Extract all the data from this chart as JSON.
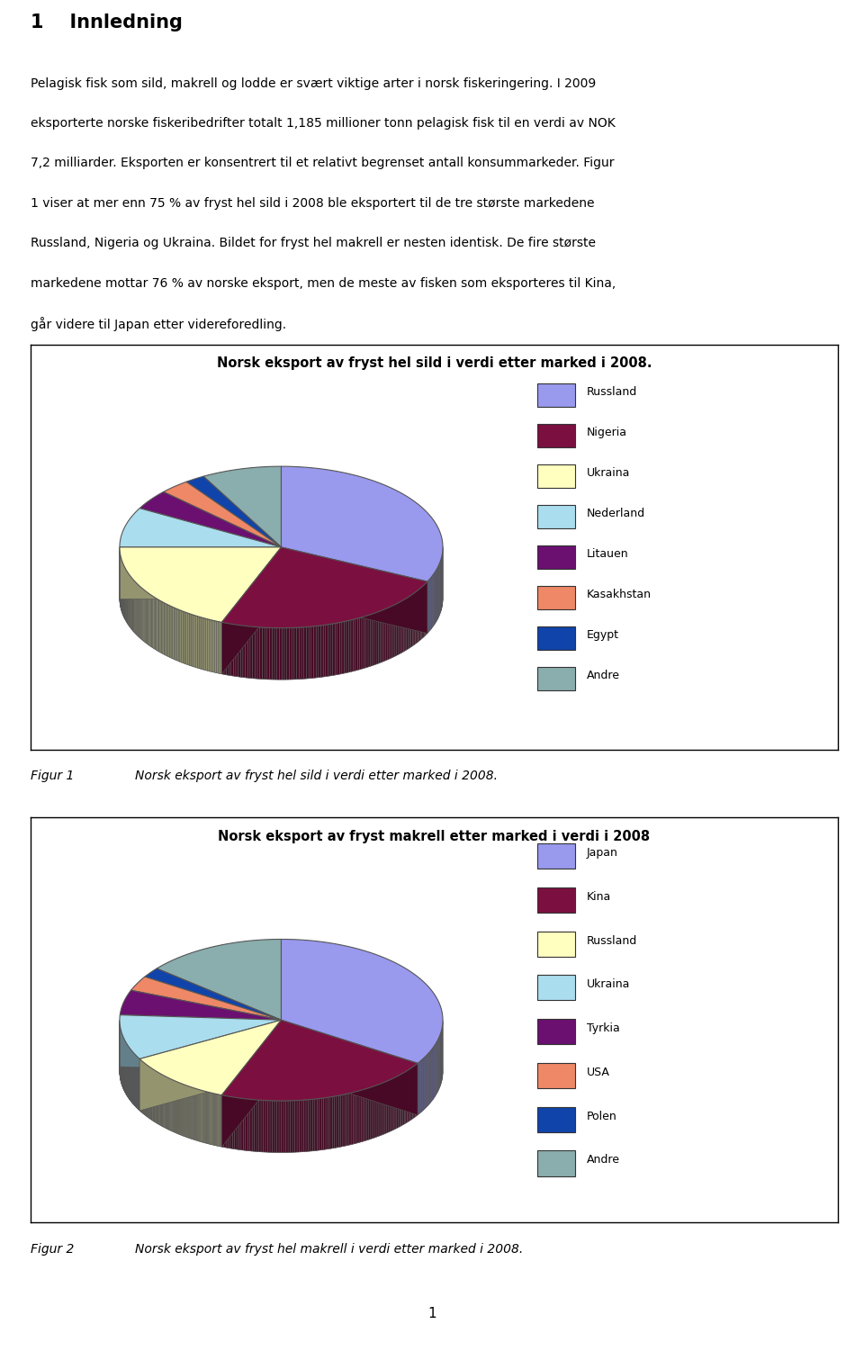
{
  "title_text": "1    Innledning",
  "body_lines": [
    "Pelagisk fisk som sild, makrell og lodde er svært viktige arter i norsk fiskeringering. I 2009",
    "eksporterte norske fiskeribedrifter totalt 1,185 millioner tonn pelagisk fisk til en verdi av NOK",
    "7,2 milliarder. Eksporten er konsentrert til et relativt begrenset antall konsummarkeder. Figur",
    "1 viser at mer enn 75 % av fryst hel sild i 2008 ble eksportert til de tre største markedene",
    "Russland, Nigeria og Ukraina. Bildet for fryst hel makrell er nesten identisk. De fire største",
    "markedene mottar 76 % av norske eksport, men de meste av fisken som eksporteres til Kina,",
    "går videre til Japan etter videreforedling."
  ],
  "chart1_title": "Norsk eksport av fryst hel sild i verdi etter marked i 2008.",
  "chart1_labels": [
    "Russland",
    "Nigeria",
    "Ukraina",
    "Nederland",
    "Litauen",
    "Kasakhstan",
    "Egypt",
    "Andre"
  ],
  "chart1_values": [
    32,
    24,
    19,
    8,
    4,
    3,
    2,
    8
  ],
  "chart1_colors": [
    "#9999EE",
    "#7B1040",
    "#FFFFC0",
    "#AADDEE",
    "#6B1070",
    "#EE8866",
    "#1144AA",
    "#8AADAD"
  ],
  "chart2_title": "Norsk eksport av fryst makrell etter marked i verdi i 2008",
  "chart2_labels": [
    "Japan",
    "Kina",
    "Russland",
    "Ukraina",
    "Tyrkia",
    "USA",
    "Polen",
    "Andre"
  ],
  "chart2_values": [
    34,
    22,
    11,
    9,
    5,
    3,
    2,
    14
  ],
  "chart2_colors": [
    "#9999EE",
    "#7B1040",
    "#FFFFC0",
    "#AADDEE",
    "#6B1070",
    "#EE8866",
    "#1144AA",
    "#8AADAD"
  ],
  "figur1_caption": "Figur 1",
  "figur1_caption2": "Norsk eksport av fryst hel sild i verdi etter marked i 2008.",
  "figur2_caption": "Figur 2",
  "figur2_caption2": "Norsk eksport av fryst hel makrell i verdi etter marked i 2008.",
  "page_number": "1",
  "background_color": "#FFFFFF",
  "legend_fontsize": 9,
  "chart_title_fontsize": 10.5,
  "body_fontsize": 10,
  "title_fontsize": 15
}
